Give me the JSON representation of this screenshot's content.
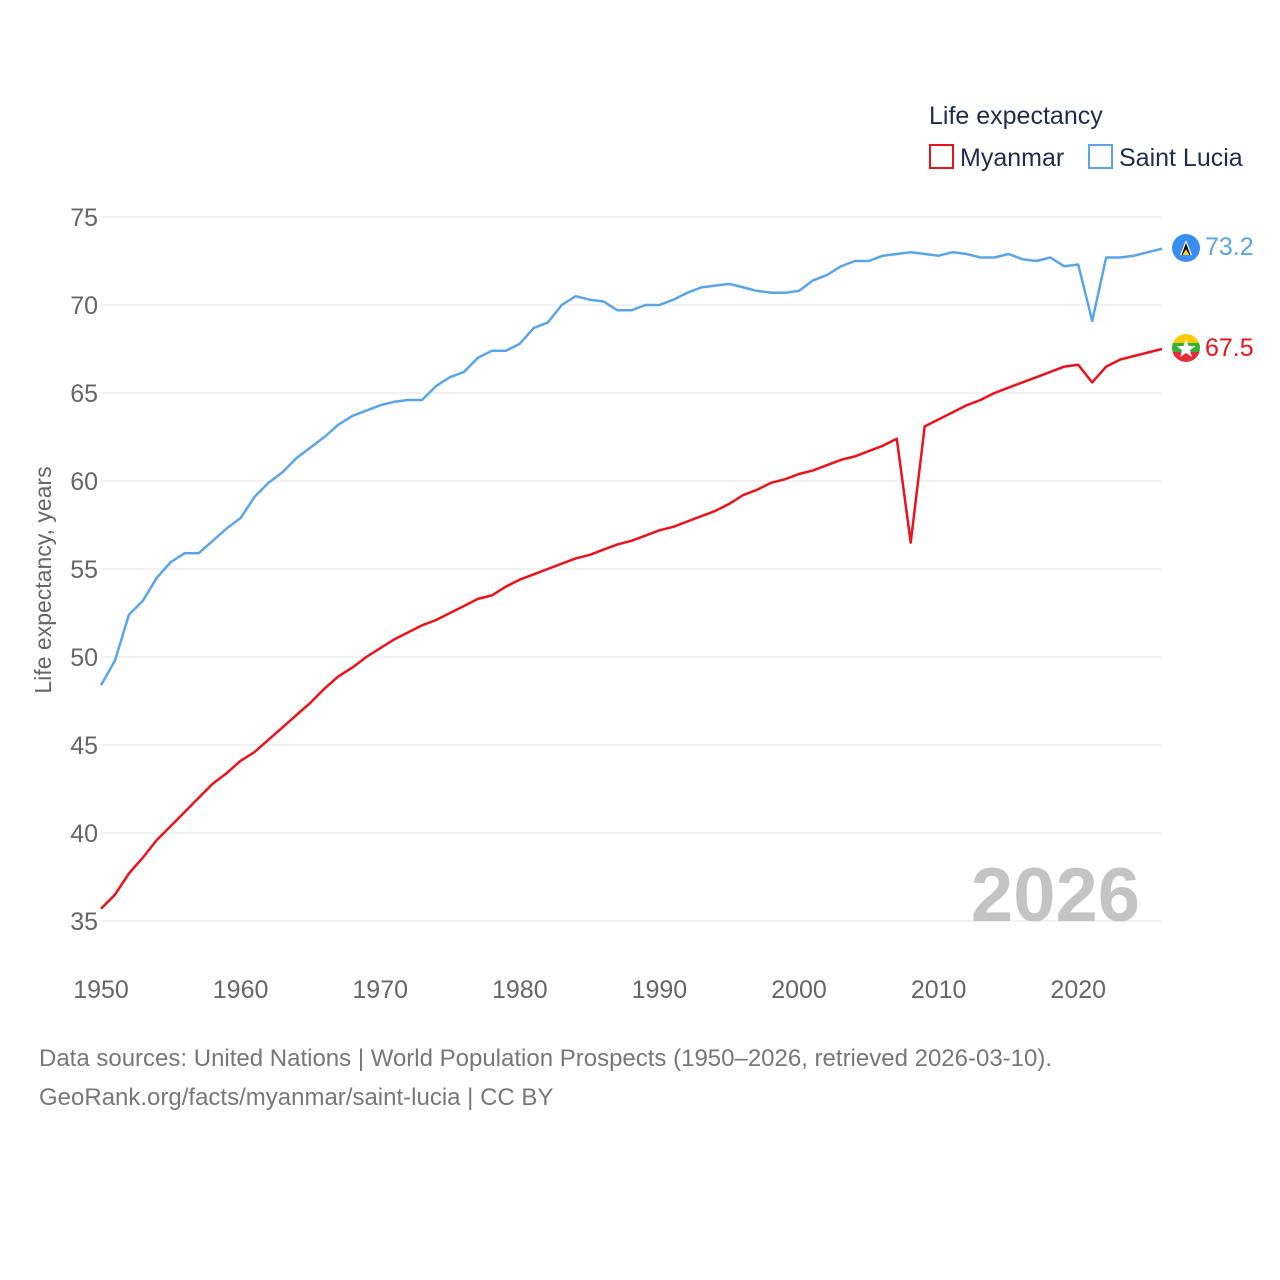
{
  "chart_data": {
    "type": "line",
    "legend_title": "Life expectancy",
    "ylabel": "Life expectancy, years",
    "xlim": [
      1950,
      2026
    ],
    "ylim": [
      33,
      76
    ],
    "yticks": [
      35,
      40,
      45,
      50,
      55,
      60,
      65,
      70,
      75
    ],
    "xticks": [
      1950,
      1960,
      1970,
      1980,
      1990,
      2000,
      2010,
      2020
    ],
    "ytick_labels": [
      "35",
      "40",
      "45",
      "50",
      "55",
      "60",
      "65",
      "70",
      "75"
    ],
    "xtick_labels": [
      "1950",
      "1960",
      "1970",
      "1980",
      "1990",
      "2000",
      "2010",
      "2020"
    ],
    "year_label": "2026",
    "legend": "top-right",
    "series": [
      {
        "name": "Myanmar",
        "color": "#e8131b",
        "end_label": "67.5",
        "icon": "myanmar-flag-icon",
        "points": [
          [
            1950,
            35.7
          ],
          [
            1951,
            36.5
          ],
          [
            1952,
            37.7
          ],
          [
            1953,
            38.6
          ],
          [
            1954,
            39.6
          ],
          [
            1955,
            40.4
          ],
          [
            1956,
            41.2
          ],
          [
            1957,
            42.0
          ],
          [
            1958,
            42.8
          ],
          [
            1959,
            43.4
          ],
          [
            1960,
            44.1
          ],
          [
            1961,
            44.6
          ],
          [
            1962,
            45.3
          ],
          [
            1963,
            46.0
          ],
          [
            1964,
            46.7
          ],
          [
            1965,
            47.4
          ],
          [
            1966,
            48.2
          ],
          [
            1967,
            48.9
          ],
          [
            1968,
            49.4
          ],
          [
            1969,
            50.0
          ],
          [
            1970,
            50.5
          ],
          [
            1971,
            51.0
          ],
          [
            1972,
            51.4
          ],
          [
            1973,
            51.8
          ],
          [
            1974,
            52.1
          ],
          [
            1975,
            52.5
          ],
          [
            1976,
            52.9
          ],
          [
            1977,
            53.3
          ],
          [
            1978,
            53.5
          ],
          [
            1979,
            54.0
          ],
          [
            1980,
            54.4
          ],
          [
            1981,
            54.7
          ],
          [
            1982,
            55.0
          ],
          [
            1983,
            55.3
          ],
          [
            1984,
            55.6
          ],
          [
            1985,
            55.8
          ],
          [
            1986,
            56.1
          ],
          [
            1987,
            56.4
          ],
          [
            1988,
            56.6
          ],
          [
            1989,
            56.9
          ],
          [
            1990,
            57.2
          ],
          [
            1991,
            57.4
          ],
          [
            1992,
            57.7
          ],
          [
            1993,
            58.0
          ],
          [
            1994,
            58.3
          ],
          [
            1995,
            58.7
          ],
          [
            1996,
            59.2
          ],
          [
            1997,
            59.5
          ],
          [
            1998,
            59.9
          ],
          [
            1999,
            60.1
          ],
          [
            2000,
            60.4
          ],
          [
            2001,
            60.6
          ],
          [
            2002,
            60.9
          ],
          [
            2003,
            61.2
          ],
          [
            2004,
            61.4
          ],
          [
            2005,
            61.7
          ],
          [
            2006,
            62.0
          ],
          [
            2007,
            62.4
          ],
          [
            2008,
            56.5
          ],
          [
            2009,
            63.1
          ],
          [
            2010,
            63.5
          ],
          [
            2011,
            63.9
          ],
          [
            2012,
            64.3
          ],
          [
            2013,
            64.6
          ],
          [
            2014,
            65.0
          ],
          [
            2015,
            65.3
          ],
          [
            2016,
            65.6
          ],
          [
            2017,
            65.9
          ],
          [
            2018,
            66.2
          ],
          [
            2019,
            66.5
          ],
          [
            2020,
            66.6
          ],
          [
            2021,
            65.6
          ],
          [
            2022,
            66.5
          ],
          [
            2023,
            66.9
          ],
          [
            2024,
            67.1
          ],
          [
            2025,
            67.3
          ],
          [
            2026,
            67.5
          ]
        ]
      },
      {
        "name": "Saint Lucia",
        "color": "#5ba5e6",
        "end_label": "73.2",
        "icon": "saint-lucia-flag-icon",
        "points": [
          [
            1950,
            48.4
          ],
          [
            1951,
            49.8
          ],
          [
            1952,
            52.4
          ],
          [
            1953,
            53.2
          ],
          [
            1954,
            54.5
          ],
          [
            1955,
            55.4
          ],
          [
            1956,
            55.9
          ],
          [
            1957,
            55.9
          ],
          [
            1958,
            56.6
          ],
          [
            1959,
            57.3
          ],
          [
            1960,
            57.9
          ],
          [
            1961,
            59.1
          ],
          [
            1962,
            59.9
          ],
          [
            1963,
            60.5
          ],
          [
            1964,
            61.3
          ],
          [
            1965,
            61.9
          ],
          [
            1966,
            62.5
          ],
          [
            1967,
            63.2
          ],
          [
            1968,
            63.7
          ],
          [
            1969,
            64.0
          ],
          [
            1970,
            64.3
          ],
          [
            1971,
            64.5
          ],
          [
            1972,
            64.6
          ],
          [
            1973,
            64.6
          ],
          [
            1974,
            65.4
          ],
          [
            1975,
            65.9
          ],
          [
            1976,
            66.2
          ],
          [
            1977,
            67.0
          ],
          [
            1978,
            67.4
          ],
          [
            1979,
            67.4
          ],
          [
            1980,
            67.8
          ],
          [
            1981,
            68.7
          ],
          [
            1982,
            69.0
          ],
          [
            1983,
            70.0
          ],
          [
            1984,
            70.5
          ],
          [
            1985,
            70.3
          ],
          [
            1986,
            70.2
          ],
          [
            1987,
            69.7
          ],
          [
            1988,
            69.7
          ],
          [
            1989,
            70.0
          ],
          [
            1990,
            70.0
          ],
          [
            1991,
            70.3
          ],
          [
            1992,
            70.7
          ],
          [
            1993,
            71.0
          ],
          [
            1994,
            71.1
          ],
          [
            1995,
            71.2
          ],
          [
            1996,
            71.0
          ],
          [
            1997,
            70.8
          ],
          [
            1998,
            70.7
          ],
          [
            1999,
            70.7
          ],
          [
            2000,
            70.8
          ],
          [
            2001,
            71.4
          ],
          [
            2002,
            71.7
          ],
          [
            2003,
            72.2
          ],
          [
            2004,
            72.5
          ],
          [
            2005,
            72.5
          ],
          [
            2006,
            72.8
          ],
          [
            2007,
            72.9
          ],
          [
            2008,
            73.0
          ],
          [
            2009,
            72.9
          ],
          [
            2010,
            72.8
          ],
          [
            2011,
            73.0
          ],
          [
            2012,
            72.9
          ],
          [
            2013,
            72.7
          ],
          [
            2014,
            72.7
          ],
          [
            2015,
            72.9
          ],
          [
            2016,
            72.6
          ],
          [
            2017,
            72.5
          ],
          [
            2018,
            72.7
          ],
          [
            2019,
            72.2
          ],
          [
            2020,
            72.3
          ],
          [
            2021,
            69.1
          ],
          [
            2022,
            72.7
          ],
          [
            2023,
            72.7
          ],
          [
            2024,
            72.8
          ],
          [
            2025,
            73.0
          ],
          [
            2026,
            73.2
          ]
        ]
      }
    ]
  },
  "footer": {
    "line1": "Data sources: United Nations | World Population Prospects (1950–2026, retrieved 2026-03-10).",
    "line2": "GeoRank.org/facts/myanmar/saint-lucia | CC BY"
  }
}
